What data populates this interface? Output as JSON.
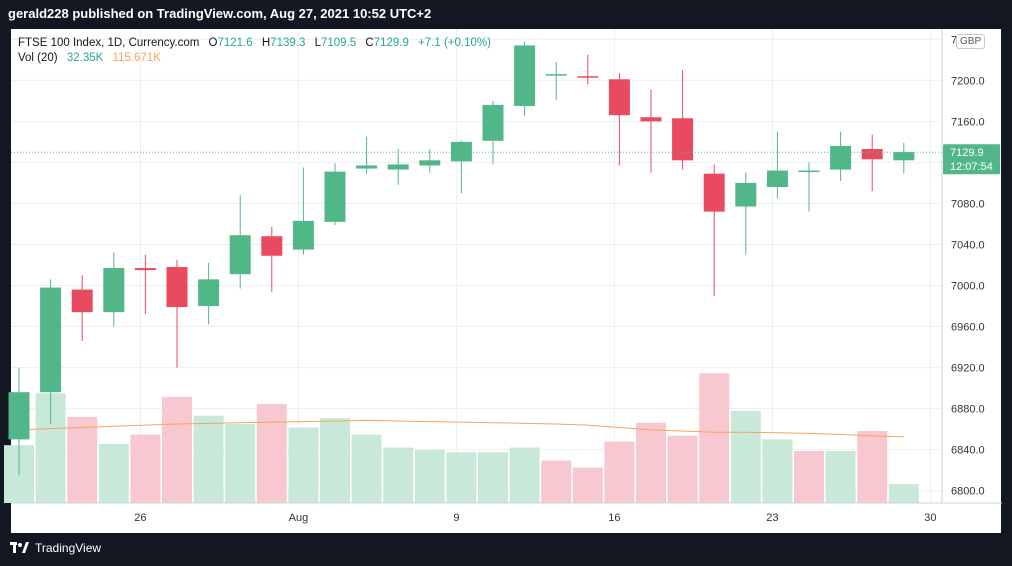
{
  "header": {
    "title": "gerald228 published on TradingView.com, Aug 27, 2021 10:52 UTC+2"
  },
  "legend": {
    "symbol": "FTSE 100 Index, 1D, Currency.com",
    "o_label": "O",
    "o": "7121.6",
    "h_label": "H",
    "h": "7139.3",
    "l_label": "L",
    "l": "7109.5",
    "c_label": "C",
    "c": "7129.9",
    "change": "+7.1 (+0.10%)",
    "vol_label": "Vol (20)",
    "vol_value": "32.35K",
    "vol_ma": "115.671K"
  },
  "price_axis": {
    "currency": "GBP",
    "last_price_label": "7129.9",
    "countdown_label": "12:07:54"
  },
  "footer": {
    "brand": "TradingView"
  },
  "colors": {
    "up": "#52b788",
    "down": "#e84a5f",
    "vol_up": "#c8e9da",
    "vol_down": "#f8c8d0",
    "ma": "#f7a35c",
    "last_price": "#52b788"
  },
  "chart_data": {
    "type": "candlestick",
    "title": "FTSE 100 Index, 1D, Currency.com",
    "x_ticks": [
      "26",
      "Aug",
      "9",
      "16",
      "23",
      "30"
    ],
    "y_ticks": [
      6800,
      6840,
      6880,
      6920,
      6960,
      7000,
      7040,
      7080,
      7120,
      7160,
      7200,
      7240
    ],
    "ylim": [
      6788,
      7250
    ],
    "last_price": 7129.9,
    "candles": [
      {
        "o": 6850,
        "h": 6920,
        "l": 6815,
        "c": 6896
      },
      {
        "o": 6896,
        "h": 7006,
        "l": 6865,
        "c": 6998
      },
      {
        "o": 6996,
        "h": 7010,
        "l": 6946,
        "c": 6974
      },
      {
        "o": 6974,
        "h": 7032,
        "l": 6960,
        "c": 7017
      },
      {
        "o": 7017,
        "h": 7030,
        "l": 6972,
        "c": 7015
      },
      {
        "o": 7018,
        "h": 7025,
        "l": 6920,
        "c": 6979
      },
      {
        "o": 6980,
        "h": 7022,
        "l": 6962,
        "c": 7006
      },
      {
        "o": 7011,
        "h": 7088,
        "l": 6997,
        "c": 7049
      },
      {
        "o": 7048,
        "h": 7057,
        "l": 6994,
        "c": 7029
      },
      {
        "o": 7035,
        "h": 7115,
        "l": 7030,
        "c": 7063
      },
      {
        "o": 7062,
        "h": 7119,
        "l": 7059,
        "c": 7111
      },
      {
        "o": 7114,
        "h": 7145,
        "l": 7109,
        "c": 7117
      },
      {
        "o": 7113,
        "h": 7133,
        "l": 7098,
        "c": 7118
      },
      {
        "o": 7117,
        "h": 7133,
        "l": 7110,
        "c": 7122
      },
      {
        "o": 7121,
        "h": 7141,
        "l": 7090,
        "c": 7140
      },
      {
        "o": 7141,
        "h": 7180,
        "l": 7118,
        "c": 7176
      },
      {
        "o": 7175,
        "h": 7238,
        "l": 7165,
        "c": 7234
      },
      {
        "o": 7206,
        "h": 7218,
        "l": 7181,
        "c": 7206
      },
      {
        "o": 7204,
        "h": 7225,
        "l": 7196,
        "c": 7203
      },
      {
        "o": 7201,
        "h": 7207,
        "l": 7117,
        "c": 7166
      },
      {
        "o": 7164,
        "h": 7191,
        "l": 7110,
        "c": 7160
      },
      {
        "o": 7163,
        "h": 7210,
        "l": 7113,
        "c": 7122
      },
      {
        "o": 7109,
        "h": 7118,
        "l": 6990,
        "c": 7072
      },
      {
        "o": 7077,
        "h": 7110,
        "l": 7030,
        "c": 7100
      },
      {
        "o": 7096,
        "h": 7150,
        "l": 7085,
        "c": 7112
      },
      {
        "o": 7111,
        "h": 7120,
        "l": 7072,
        "c": 7112
      },
      {
        "o": 7113,
        "h": 7150,
        "l": 7102,
        "c": 7136
      },
      {
        "o": 7133,
        "h": 7147,
        "l": 7092,
        "c": 7123
      },
      {
        "o": 7122,
        "h": 7139,
        "l": 7109,
        "c": 7130
      }
    ],
    "volume": {
      "values": [
        49,
        93,
        73,
        50,
        58,
        90,
        74,
        67,
        84,
        64,
        72,
        58,
        47,
        45,
        43,
        43,
        47,
        36,
        30,
        52,
        68,
        57,
        110,
        78,
        54,
        44,
        44,
        61,
        16
      ],
      "up": [
        true,
        true,
        false,
        true,
        false,
        false,
        true,
        true,
        false,
        true,
        true,
        true,
        true,
        true,
        true,
        true,
        true,
        false,
        false,
        false,
        false,
        false,
        false,
        true,
        true,
        false,
        true,
        false,
        true
      ],
      "ma": [
        62,
        63,
        64,
        65,
        66,
        67,
        67.5,
        68,
        68.5,
        69,
        69.5,
        70,
        69.5,
        69,
        68.5,
        68,
        67.5,
        67,
        66,
        64,
        62,
        61,
        60,
        60,
        59.5,
        59,
        58,
        57,
        56
      ]
    }
  }
}
